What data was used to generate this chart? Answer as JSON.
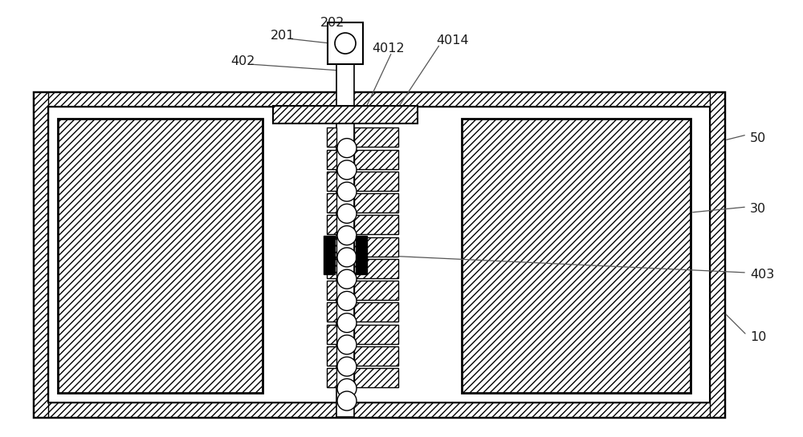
{
  "bg_color": "#ffffff",
  "line_color": "#000000",
  "fig_width": 10.0,
  "fig_height": 5.45,
  "dpi": 100
}
